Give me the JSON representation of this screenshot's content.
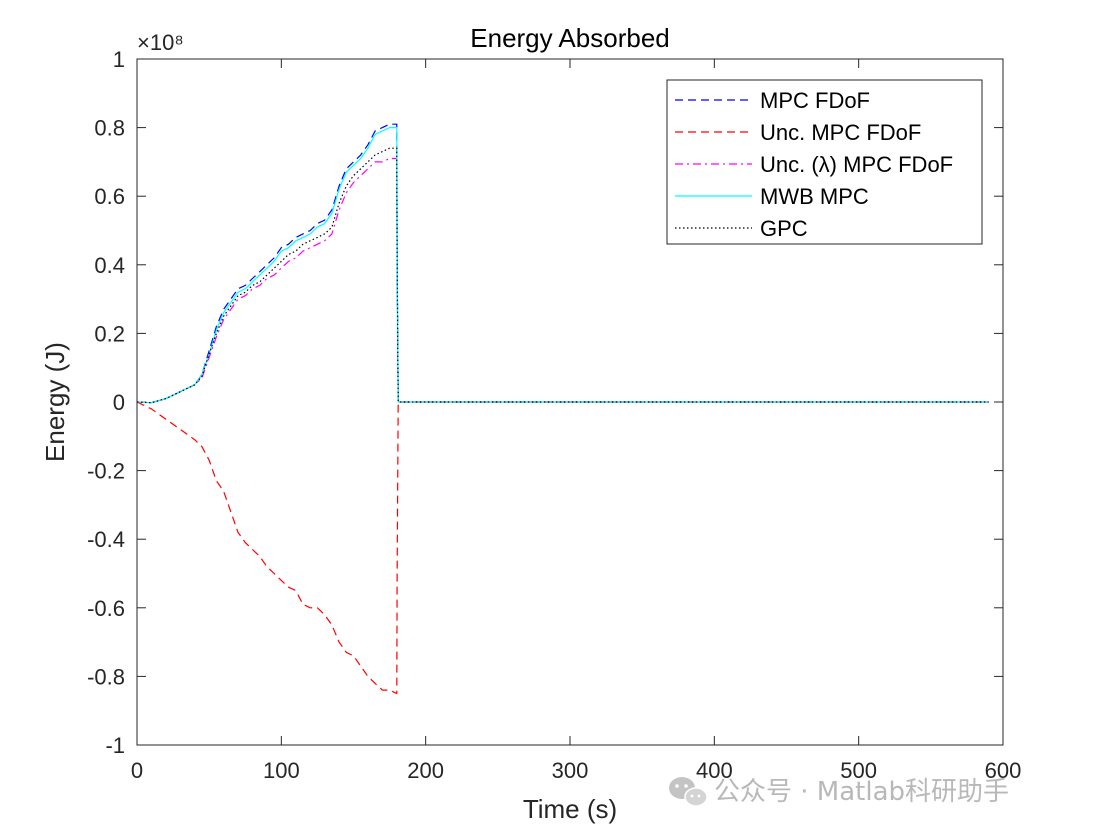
{
  "chart_data": {
    "type": "line",
    "title": "Energy Absorbed",
    "xlabel": "Time (s)",
    "ylabel": "Energy (J)",
    "y_exponent_label": "×10⁸",
    "xlim": [
      0,
      600
    ],
    "ylim": [
      -1,
      1
    ],
    "xticks": [
      0,
      100,
      200,
      300,
      400,
      500,
      600
    ],
    "xtick_labels": [
      "0",
      "100",
      "200",
      "300",
      "400",
      "500",
      "600"
    ],
    "yticks": [
      1,
      0.8,
      0.6,
      0.4,
      0.2,
      0,
      -0.2,
      -0.4,
      -0.6,
      -0.8,
      -1
    ],
    "ytick_labels": [
      "1",
      "0.8",
      "0.6",
      "0.4",
      "0.2",
      "0",
      "-0.2",
      "-0.4",
      "-0.6",
      "-0.8",
      "-1"
    ],
    "grid": false,
    "legend_location": "top-right",
    "series": [
      {
        "name": "MPC FDoF",
        "color": "#0000ff",
        "dash": "dashed",
        "x": [
          0,
          10,
          20,
          30,
          40,
          45,
          50,
          55,
          60,
          65,
          70,
          75,
          80,
          85,
          90,
          95,
          100,
          105,
          110,
          115,
          120,
          125,
          130,
          135,
          140,
          145,
          150,
          155,
          160,
          165,
          170,
          175,
          180,
          180.2,
          181,
          590
        ],
        "y": [
          0,
          -0.002,
          0.01,
          0.03,
          0.05,
          0.08,
          0.15,
          0.22,
          0.27,
          0.3,
          0.33,
          0.34,
          0.36,
          0.38,
          0.4,
          0.42,
          0.45,
          0.46,
          0.48,
          0.49,
          0.5,
          0.52,
          0.53,
          0.56,
          0.63,
          0.68,
          0.7,
          0.72,
          0.75,
          0.79,
          0.8,
          0.81,
          0.81,
          0.45,
          0,
          0
        ]
      },
      {
        "name": "Unc. MPC FDoF",
        "color": "#ff0000",
        "dash": "dashed",
        "x": [
          0,
          10,
          20,
          30,
          40,
          45,
          50,
          55,
          60,
          65,
          70,
          75,
          80,
          85,
          90,
          95,
          100,
          105,
          110,
          115,
          120,
          125,
          130,
          135,
          140,
          145,
          150,
          155,
          160,
          165,
          170,
          175,
          180,
          180.2,
          181,
          590
        ],
        "y": [
          0,
          -0.02,
          -0.05,
          -0.08,
          -0.11,
          -0.13,
          -0.17,
          -0.23,
          -0.26,
          -0.32,
          -0.38,
          -0.41,
          -0.43,
          -0.45,
          -0.48,
          -0.5,
          -0.52,
          -0.54,
          -0.55,
          -0.59,
          -0.6,
          -0.6,
          -0.62,
          -0.65,
          -0.7,
          -0.73,
          -0.74,
          -0.77,
          -0.8,
          -0.82,
          -0.84,
          -0.84,
          -0.85,
          -0.52,
          0,
          0
        ]
      },
      {
        "name": "Unc. (λ) MPC FDoF",
        "color": "#ff00ff",
        "dash": "dashdot",
        "x": [
          0,
          10,
          20,
          30,
          40,
          45,
          50,
          55,
          60,
          65,
          70,
          75,
          80,
          85,
          90,
          95,
          100,
          105,
          110,
          115,
          120,
          125,
          130,
          135,
          140,
          145,
          150,
          155,
          160,
          165,
          170,
          175,
          180,
          180.2,
          181,
          590
        ],
        "y": [
          0,
          -0.002,
          0.01,
          0.03,
          0.05,
          0.07,
          0.13,
          0.19,
          0.24,
          0.27,
          0.3,
          0.31,
          0.33,
          0.34,
          0.36,
          0.37,
          0.39,
          0.41,
          0.42,
          0.44,
          0.45,
          0.46,
          0.47,
          0.49,
          0.56,
          0.61,
          0.64,
          0.66,
          0.68,
          0.7,
          0.7,
          0.71,
          0.71,
          0.4,
          0,
          0
        ]
      },
      {
        "name": "MWB MPC",
        "color": "#00ffff",
        "dash": "solid",
        "x": [
          0,
          10,
          20,
          30,
          40,
          45,
          50,
          55,
          60,
          65,
          70,
          75,
          80,
          85,
          90,
          95,
          100,
          105,
          110,
          115,
          120,
          125,
          130,
          135,
          140,
          145,
          150,
          155,
          160,
          165,
          170,
          175,
          180,
          180.2,
          181,
          590
        ],
        "y": [
          0,
          -0.002,
          0.01,
          0.03,
          0.05,
          0.08,
          0.14,
          0.21,
          0.26,
          0.29,
          0.32,
          0.33,
          0.35,
          0.37,
          0.39,
          0.41,
          0.44,
          0.45,
          0.47,
          0.48,
          0.49,
          0.51,
          0.52,
          0.55,
          0.62,
          0.67,
          0.69,
          0.71,
          0.74,
          0.78,
          0.79,
          0.8,
          0.8,
          0.44,
          0,
          0
        ]
      },
      {
        "name": "GPC",
        "color": "#000000",
        "dash": "dotted",
        "x": [
          0,
          10,
          20,
          30,
          40,
          45,
          50,
          55,
          60,
          65,
          70,
          75,
          80,
          85,
          90,
          95,
          100,
          105,
          110,
          115,
          120,
          125,
          130,
          135,
          140,
          145,
          150,
          155,
          160,
          165,
          170,
          175,
          180,
          180.2,
          181,
          590
        ],
        "y": [
          0,
          -0.002,
          0.01,
          0.03,
          0.05,
          0.075,
          0.14,
          0.2,
          0.25,
          0.28,
          0.31,
          0.32,
          0.34,
          0.35,
          0.37,
          0.39,
          0.41,
          0.43,
          0.44,
          0.46,
          0.47,
          0.48,
          0.49,
          0.51,
          0.58,
          0.63,
          0.66,
          0.68,
          0.7,
          0.72,
          0.73,
          0.74,
          0.74,
          0.42,
          0,
          0
        ]
      }
    ]
  },
  "watermark": {
    "text": "公众号 · Matlab科研助手",
    "icon": "wechat-icon"
  }
}
